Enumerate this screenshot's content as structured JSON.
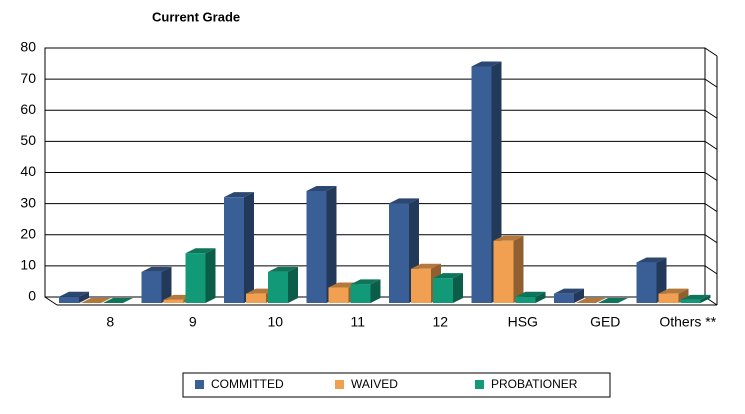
{
  "chart_data": {
    "type": "bar3d",
    "title": "Current Grade",
    "categories": [
      "8",
      "9",
      "10",
      "11",
      "12",
      "HSG",
      "GED",
      "Others **"
    ],
    "series": [
      {
        "name": "COMMITTED",
        "color": "#3a5f96",
        "values": [
          2,
          10,
          34,
          36,
          32,
          76,
          3,
          13
        ]
      },
      {
        "name": "WAIVED",
        "color": "#f0a050",
        "values": [
          0,
          1,
          3,
          5,
          11,
          20,
          0,
          3
        ]
      },
      {
        "name": "PROBATIONER",
        "color": "#129a78",
        "values": [
          0,
          16,
          10,
          6,
          8,
          2,
          0,
          1
        ]
      }
    ],
    "ylim": [
      0,
      80
    ],
    "yticks": [
      0,
      10,
      20,
      30,
      40,
      50,
      60,
      70,
      80
    ],
    "grid": true,
    "legend": "bottom"
  }
}
